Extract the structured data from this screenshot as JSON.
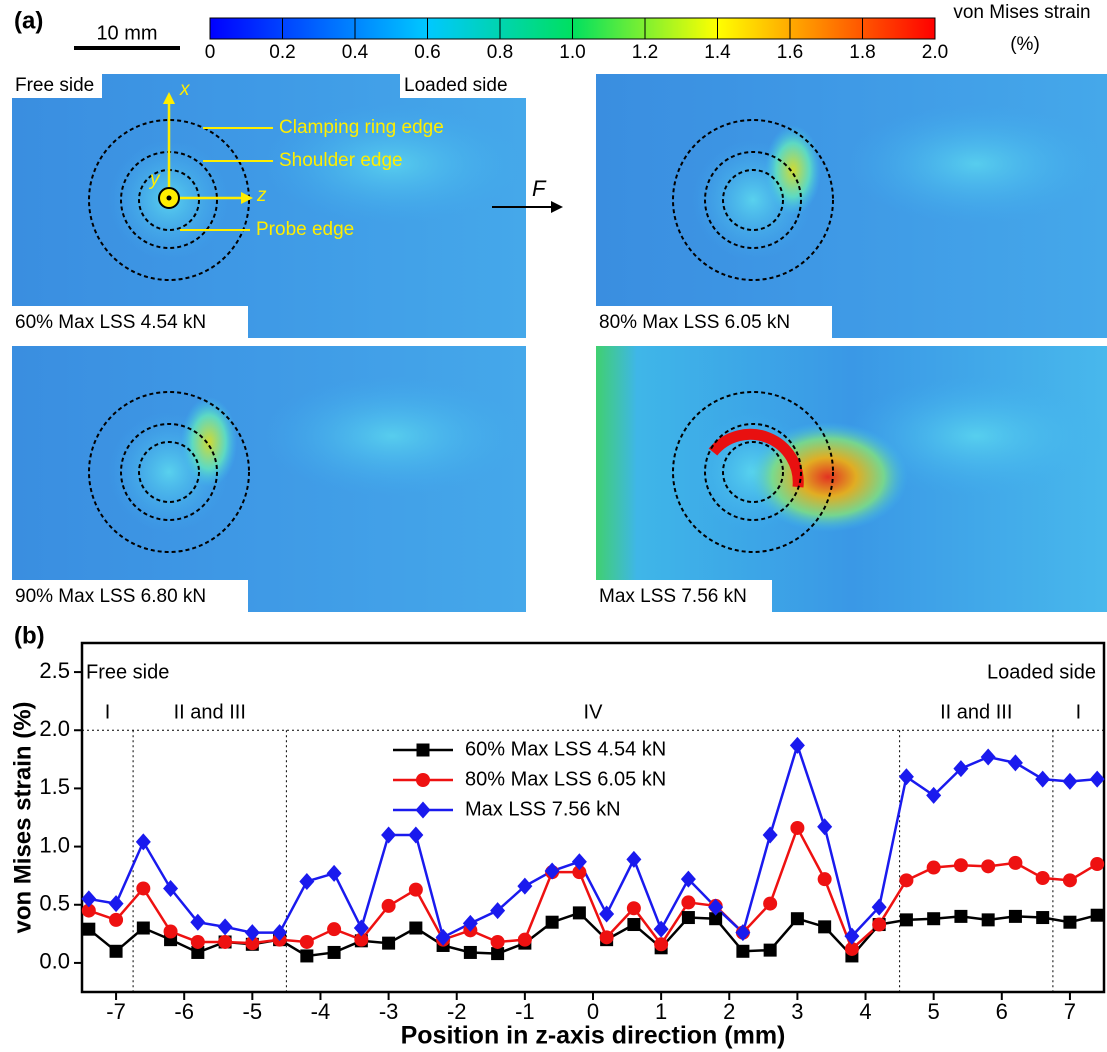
{
  "panel_a": {
    "label": "(a)",
    "scale_bar": "10 mm",
    "colorbar": {
      "title": "von Mises strain",
      "unit": "(%)",
      "clim": [
        0,
        2
      ],
      "ticks": [
        0,
        0.2,
        0.4,
        0.6,
        0.8,
        {
          "value": 1,
          "label": "1.0"
        },
        1.2,
        1.4,
        1.6,
        1.8,
        {
          "value": 2,
          "label": "2.0"
        }
      ]
    },
    "annotations": {
      "free_side": "Free side",
      "loaded_side": "Loaded side",
      "x_axis": "x",
      "y_axis": "y",
      "z_axis": "z",
      "clamping_ring": "Clamping ring edge",
      "shoulder": "Shoulder edge",
      "probe": "Probe edge",
      "force": "F"
    },
    "maps": [
      {
        "caption": "60% Max LSS 4.54 kN"
      },
      {
        "caption": "80% Max LSS 6.05 kN"
      },
      {
        "caption": "90% Max LSS 6.80 kN"
      },
      {
        "caption": "Max LSS 7.56 kN"
      }
    ]
  },
  "chart_data": {
    "type": "line",
    "panel_label": "(b)",
    "x_label": "Position in z-axis direction (mm)",
    "y_label": "von Mises strain (%)",
    "xlim": [
      -7.5,
      7.5
    ],
    "xticks": [
      -7,
      -6,
      -5,
      -4,
      -3,
      -2,
      -1,
      0,
      1,
      2,
      3,
      4,
      5,
      6,
      7
    ],
    "ylim": [
      -0.25,
      2.75
    ],
    "yticks": [
      {
        "value": 0,
        "label": "0.0"
      },
      0.5,
      {
        "value": 1,
        "label": "1.0"
      },
      1.5,
      {
        "value": 2,
        "label": "2.0"
      },
      2.5
    ],
    "legend": "upper center",
    "side_labels": [
      "Free side",
      "Loaded side"
    ],
    "region_bounds": [
      -6.75,
      -4.5,
      4.5,
      6.75
    ],
    "region_line": 2,
    "region_labels": [
      "I",
      "II and III",
      "IV",
      "II and III",
      "I"
    ],
    "x": [
      -7.4,
      -7,
      -6.6,
      -6.2,
      -5.8,
      -5.4,
      -5,
      -4.6,
      -4.2,
      -3.8,
      -3.4,
      -3,
      -2.6,
      -2.2,
      -1.8,
      -1.4,
      -1,
      -0.6,
      -0.2,
      0.2,
      0.6,
      1,
      1.4,
      1.8,
      2.2,
      2.6,
      3,
      3.4,
      3.8,
      4.2,
      4.6,
      5,
      5.4,
      5.8,
      6.2,
      6.6,
      7,
      7.4
    ],
    "series": [
      {
        "name": "60% Max LSS 4.54 kN",
        "color": "#000000",
        "marker": "square",
        "values": [
          0.29,
          0.1,
          0.3,
          0.2,
          0.09,
          0.18,
          0.16,
          0.2,
          0.06,
          0.09,
          0.19,
          0.17,
          0.3,
          0.15,
          0.09,
          0.08,
          0.17,
          0.35,
          0.43,
          0.2,
          0.33,
          0.13,
          0.39,
          0.38,
          0.1,
          0.11,
          0.38,
          0.31,
          0.06,
          0.33,
          0.37,
          0.38,
          0.4,
          0.37,
          0.4,
          0.39,
          0.35,
          0.41
        ]
      },
      {
        "name": "80% Max LSS 6.05 kN",
        "color": "#ee1111",
        "marker": "circle",
        "values": [
          0.45,
          0.37,
          0.64,
          0.27,
          0.18,
          0.18,
          0.17,
          0.2,
          0.18,
          0.29,
          0.2,
          0.49,
          0.63,
          0.2,
          0.28,
          0.18,
          0.2,
          0.78,
          0.78,
          0.22,
          0.47,
          0.16,
          0.52,
          0.49,
          0.26,
          0.51,
          1.16,
          0.72,
          0.12,
          0.33,
          0.71,
          0.82,
          0.84,
          0.83,
          0.86,
          0.73,
          0.71,
          0.85
        ]
      },
      {
        "name": "Max LSS 7.56 kN",
        "color": "#1a1aee",
        "marker": "diamond",
        "values": [
          0.55,
          0.51,
          1.04,
          0.64,
          0.35,
          0.31,
          0.26,
          0.26,
          0.7,
          0.77,
          0.3,
          1.1,
          1.1,
          0.22,
          0.34,
          0.45,
          0.66,
          0.79,
          0.87,
          0.42,
          0.89,
          0.29,
          0.72,
          0.48,
          0.26,
          1.1,
          1.87,
          1.17,
          0.23,
          0.48,
          1.6,
          1.44,
          1.67,
          1.77,
          1.72,
          1.58,
          1.56,
          1.58
        ]
      }
    ]
  }
}
